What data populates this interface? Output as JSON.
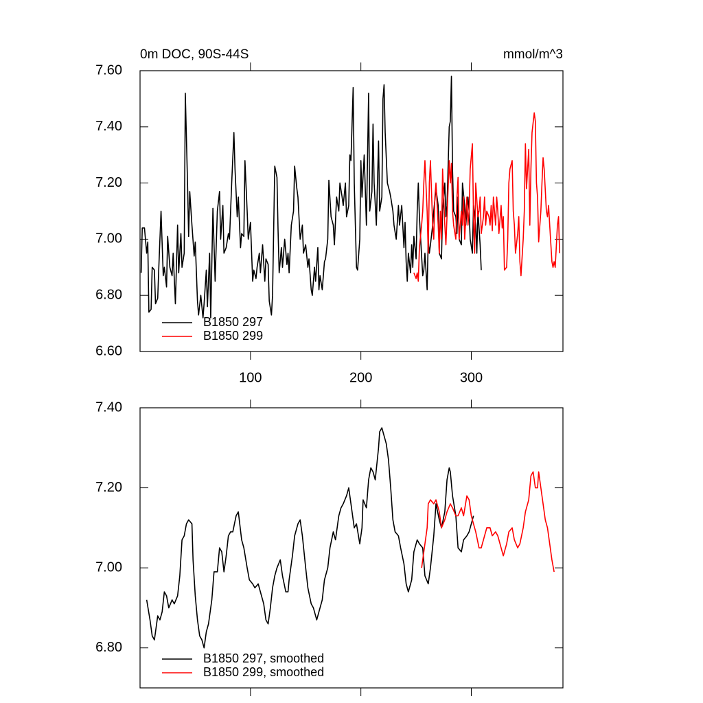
{
  "chart_data": [
    {
      "type": "line",
      "title": "0m DOC, 90S-44S",
      "units": "mmol/m^3",
      "xlim": [
        0,
        383
      ],
      "xticks": [
        100,
        200,
        300
      ],
      "show_xtick_labels": true,
      "ylim": [
        6.6,
        7.6
      ],
      "yticks": [
        {
          "value": 6.6,
          "label": "6.60"
        },
        {
          "value": 6.8,
          "label": "6.80"
        },
        {
          "value": 7,
          "label": "7.00"
        },
        {
          "value": 7.2,
          "label": "7.20"
        },
        {
          "value": 7.4,
          "label": "7.40"
        },
        {
          "value": 7.6,
          "label": "7.60"
        }
      ],
      "series": [
        {
          "name": "B1850 297",
          "color": "#000000",
          "x": [
            1,
            2,
            4,
            6,
            7,
            8,
            10,
            11,
            13,
            14,
            16,
            17,
            19,
            21,
            22,
            24,
            25,
            27,
            29,
            30,
            32,
            34,
            35,
            37,
            38,
            40,
            41,
            43,
            44,
            45,
            47,
            49,
            50,
            52,
            53,
            55,
            57,
            58,
            60,
            61,
            63,
            64,
            66,
            68,
            69,
            70,
            72,
            73,
            75,
            76,
            78,
            80,
            81,
            83,
            85,
            86,
            88,
            89,
            91,
            92,
            94,
            95,
            97,
            98,
            100,
            102,
            103,
            105,
            106,
            108,
            109,
            111,
            113,
            114,
            116,
            117,
            119,
            120,
            122,
            124,
            125,
            126,
            128,
            129,
            131,
            133,
            134,
            135,
            137,
            139,
            140,
            142,
            143,
            145,
            147,
            148,
            150,
            152,
            153,
            155,
            156,
            158,
            159,
            161,
            162,
            163,
            165,
            167,
            168,
            170,
            171,
            173,
            175,
            176,
            178,
            180,
            181,
            183,
            184,
            186,
            187,
            189,
            190,
            191,
            193,
            194,
            196,
            197,
            199,
            200,
            201,
            203,
            205,
            207,
            208,
            210,
            211,
            212,
            214,
            216,
            217,
            219,
            220,
            221,
            222,
            224,
            226,
            227,
            229,
            230,
            232,
            234,
            235,
            237,
            239,
            240,
            241,
            242,
            243,
            245,
            246,
            247,
            248,
            250,
            251,
            252,
            253,
            255,
            256,
            257,
            258,
            260,
            261,
            262,
            263,
            265,
            266,
            268,
            270,
            271,
            273,
            274,
            276,
            277,
            278,
            280,
            281,
            282,
            283,
            284,
            286,
            287,
            288,
            289,
            291,
            292,
            294,
            295,
            297,
            298,
            299,
            301,
            302,
            304,
            305,
            306,
            308,
            309
          ],
          "values": [
            6.88,
            7.04,
            7.04,
            6.95,
            6.99,
            6.74,
            6.75,
            6.9,
            6.89,
            6.77,
            6.79,
            6.9,
            7.1,
            6.87,
            6.9,
            6.83,
            7.01,
            6.9,
            6.87,
            6.95,
            6.77,
            7.05,
            6.88,
            7.02,
            6.9,
            6.95,
            7.52,
            7.2,
            7.01,
            7.17,
            7.05,
            6.94,
            6.99,
            6.78,
            6.73,
            6.8,
            6.72,
            6.77,
            6.89,
            6.76,
            6.95,
            6.72,
            7.11,
            6.85,
            6.98,
            7.1,
            7.17,
            7.0,
            7.12,
            6.95,
            6.97,
            7.02,
            7.0,
            7.2,
            7.38,
            7.25,
            7.08,
            7.15,
            6.97,
            7.02,
            7.01,
            7.28,
            7.1,
            7.0,
            7.06,
            6.85,
            6.89,
            6.86,
            6.9,
            6.95,
            6.88,
            6.98,
            6.85,
            6.93,
            6.91,
            6.78,
            6.73,
            6.8,
            7.26,
            7.22,
            7.03,
            6.88,
            6.97,
            6.9,
            7.0,
            6.91,
            6.95,
            6.88,
            7.05,
            7.1,
            7.26,
            7.18,
            7.15,
            7.0,
            7.05,
            6.95,
            6.98,
            6.9,
            6.93,
            6.82,
            6.8,
            6.9,
            6.85,
            6.97,
            6.82,
            6.87,
            6.82,
            6.92,
            6.93,
            7.0,
            7.21,
            7.08,
            7.05,
            6.98,
            7.15,
            7.1,
            7.2,
            7.15,
            7.12,
            7.2,
            7.08,
            7.12,
            7.3,
            7.28,
            7.54,
            7.2,
            6.9,
            6.89,
            7.0,
            7.28,
            7.15,
            7.3,
            7.05,
            7.52,
            7.1,
            7.17,
            7.41,
            7.2,
            7.05,
            7.35,
            7.1,
            7.15,
            7.5,
            7.55,
            7.38,
            7.2,
            7.17,
            7.15,
            7.1,
            7.05,
            7.0,
            7.12,
            7.05,
            7.12,
            6.97,
            7.06,
            6.92,
            6.85,
            6.95,
            6.88,
            6.98,
            6.9,
            7.01,
            6.93,
            7.1,
            7.2,
            7.08,
            6.94,
            6.87,
            6.89,
            6.95,
            6.82,
            7.0,
            6.95,
            6.98,
            7.05,
            7.1,
            7.18,
            7.12,
            6.95,
            6.93,
            7.1,
            7.2,
            7.08,
            7.12,
            7.4,
            7.42,
            7.58,
            7.25,
            7.1,
            7.08,
            7.02,
            7.15,
            7.0,
            6.98,
            7.2,
            7.12,
            7.05,
            7.15,
            7.1,
            7.0,
            6.95,
            7.12,
            7.05,
            6.95,
            7.1,
            6.98,
            6.89
          ]
        },
        {
          "name": "B1850 299",
          "color": "#ff0000",
          "x": [
            248,
            250,
            251,
            252,
            253,
            255,
            256,
            257,
            258,
            260,
            261,
            262,
            263,
            265,
            266,
            267,
            268,
            270,
            271,
            272,
            273,
            274,
            276,
            277,
            278,
            280,
            281,
            282,
            283,
            284,
            286,
            287,
            288,
            289,
            291,
            292,
            293,
            294,
            296,
            297,
            298,
            299,
            301,
            302,
            303,
            304,
            306,
            307,
            308,
            309,
            311,
            312,
            313,
            314,
            316,
            317,
            318,
            319,
            320,
            322,
            323,
            324,
            325,
            327,
            328,
            329,
            330,
            332,
            333,
            334,
            335,
            337,
            338,
            339,
            340,
            342,
            343,
            344,
            345,
            347,
            348,
            349,
            350,
            352,
            353,
            354,
            355,
            357,
            358,
            359,
            360,
            361,
            363,
            364,
            365,
            366,
            368,
            369,
            370,
            371,
            373,
            374,
            375,
            376,
            378,
            379,
            380
          ],
          "values": [
            6.88,
            6.86,
            6.88,
            6.85,
            6.97,
            7.05,
            7.1,
            7.2,
            7.28,
            7.1,
            6.95,
            7.2,
            7.28,
            7.05,
            7.0,
            7.15,
            7.2,
            7.05,
            6.95,
            7.1,
            7.0,
            7.25,
            7.05,
            6.98,
            7.08,
            7.28,
            7.2,
            7.27,
            7.1,
            7.05,
            7.0,
            7.15,
            7.22,
            7.0,
            7.1,
            7.05,
            7.15,
            7.0,
            7.15,
            7.05,
            7.1,
            7.25,
            7.34,
            7.08,
            6.95,
            7.2,
            7.08,
            7.1,
            7.15,
            7.02,
            7.08,
            7.15,
            7.05,
            7.1,
            7.08,
            7.05,
            7.12,
            7.03,
            7.15,
            7.05,
            7.15,
            7.1,
            7.02,
            7.12,
            7.04,
            7.08,
            6.89,
            6.9,
            7.0,
            7.2,
            7.25,
            7.28,
            7.1,
            7.05,
            6.95,
            7.02,
            7.08,
            6.92,
            6.87,
            7.0,
            7.1,
            7.34,
            7.18,
            7.32,
            7.05,
            7.25,
            7.38,
            7.45,
            7.42,
            7.2,
            7.15,
            6.99,
            7.1,
            7.2,
            7.29,
            7.25,
            7.1,
            7.08,
            7.12,
            7.05,
            6.92,
            6.9,
            6.92,
            6.9,
            7.05,
            7.08,
            6.95
          ]
        }
      ]
    },
    {
      "type": "line",
      "xlim": [
        0,
        383
      ],
      "xticks": [
        100,
        200,
        300
      ],
      "show_xtick_labels": false,
      "ylim": [
        6.7,
        7.4
      ],
      "yticks": [
        {
          "value": 6.8,
          "label": "6.80"
        },
        {
          "value": 7,
          "label": "7.00"
        },
        {
          "value": 7.2,
          "label": "7.20"
        },
        {
          "value": 7.4,
          "label": "7.40"
        }
      ],
      "series": [
        {
          "name": "B1850 297, smoothed",
          "color": "#000000",
          "x": [
            6,
            9,
            11,
            13,
            16,
            18,
            20,
            22,
            24,
            26,
            29,
            31,
            34,
            36,
            38,
            40,
            42,
            44,
            47,
            48,
            50,
            52,
            54,
            56,
            58,
            60,
            62,
            65,
            67,
            70,
            72,
            74,
            76,
            78,
            80,
            82,
            84,
            87,
            89,
            92,
            94,
            97,
            99,
            102,
            104,
            107,
            109,
            112,
            114,
            116,
            118,
            120,
            122,
            124,
            127,
            129,
            132,
            134,
            135,
            138,
            140,
            143,
            145,
            147,
            150,
            152,
            155,
            157,
            160,
            162,
            165,
            167,
            170,
            172,
            175,
            177,
            180,
            182,
            184,
            187,
            189,
            191,
            194,
            196,
            199,
            201,
            202,
            205,
            207,
            209,
            211,
            213,
            216,
            217,
            219,
            221,
            223,
            225,
            227,
            229,
            231,
            234,
            236,
            239,
            241,
            243,
            246,
            248,
            251,
            253,
            256,
            258,
            261,
            263,
            266,
            268,
            271,
            273,
            276,
            278,
            280,
            281,
            283,
            286,
            288,
            291,
            293,
            296,
            298,
            301,
            302
          ],
          "values": [
            6.92,
            6.87,
            6.83,
            6.82,
            6.88,
            6.87,
            6.89,
            6.94,
            6.93,
            6.9,
            6.92,
            6.91,
            6.93,
            6.98,
            7.07,
            7.08,
            7.11,
            7.12,
            7.11,
            7.02,
            6.93,
            6.87,
            6.83,
            6.82,
            6.8,
            6.84,
            6.86,
            6.92,
            6.99,
            6.99,
            7.05,
            7.04,
            6.99,
            7.03,
            7.08,
            7.09,
            7.09,
            7.13,
            7.14,
            7.07,
            7.05,
            7.0,
            6.97,
            6.96,
            6.95,
            6.96,
            6.94,
            6.91,
            6.87,
            6.86,
            6.9,
            6.95,
            6.98,
            7.0,
            7.02,
            6.98,
            6.94,
            6.94,
            6.97,
            7.03,
            7.08,
            7.11,
            7.12,
            7.08,
            7.0,
            6.95,
            6.91,
            6.9,
            6.87,
            6.89,
            6.92,
            6.97,
            7.0,
            7.05,
            7.09,
            7.07,
            7.13,
            7.15,
            7.16,
            7.18,
            7.2,
            7.16,
            7.1,
            7.11,
            7.06,
            7.1,
            7.17,
            7.15,
            7.22,
            7.25,
            7.24,
            7.22,
            7.3,
            7.34,
            7.35,
            7.33,
            7.31,
            7.27,
            7.2,
            7.12,
            7.09,
            7.08,
            7.05,
            7.01,
            6.96,
            6.94,
            6.97,
            7.04,
            7.07,
            7.06,
            7.05,
            6.98,
            6.96,
            7.0,
            7.08,
            7.16,
            7.12,
            7.1,
            7.14,
            7.22,
            7.25,
            7.24,
            7.18,
            7.13,
            7.05,
            7.04,
            7.07,
            7.08,
            7.09,
            7.12,
            7.13
          ]
        },
        {
          "name": "B1850 299, smoothed",
          "color": "#ff0000",
          "x": [
            255,
            257,
            260,
            261,
            263,
            266,
            268,
            271,
            273,
            276,
            278,
            281,
            283,
            286,
            288,
            291,
            293,
            296,
            298,
            300,
            302,
            304,
            307,
            309,
            312,
            314,
            317,
            319,
            322,
            324,
            327,
            329,
            332,
            334,
            337,
            339,
            342,
            344,
            347,
            349,
            352,
            354,
            356,
            358,
            360,
            361,
            363,
            365,
            367,
            369,
            371,
            373,
            375
          ],
          "values": [
            7.0,
            7.04,
            7.1,
            7.16,
            7.17,
            7.16,
            7.17,
            7.14,
            7.1,
            7.12,
            7.14,
            7.16,
            7.15,
            7.13,
            7.13,
            7.15,
            7.13,
            7.18,
            7.17,
            7.13,
            7.11,
            7.09,
            7.05,
            7.05,
            7.08,
            7.1,
            7.1,
            7.08,
            7.09,
            7.08,
            7.05,
            7.03,
            7.06,
            7.09,
            7.1,
            7.07,
            7.05,
            7.06,
            7.1,
            7.14,
            7.17,
            7.23,
            7.24,
            7.2,
            7.2,
            7.24,
            7.2,
            7.16,
            7.12,
            7.1,
            7.06,
            7.02,
            6.99
          ]
        }
      ]
    }
  ]
}
